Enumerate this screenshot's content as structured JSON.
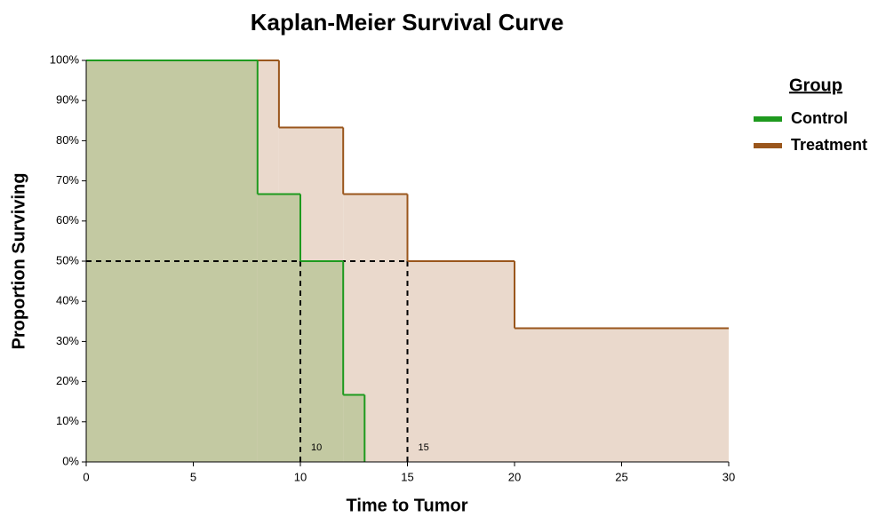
{
  "chart_data": {
    "type": "step",
    "title": "Kaplan-Meier Survival Curve",
    "x_label": "Time to Tumor",
    "y_label": "Proportion Surviving",
    "legend_title": "Group",
    "legend": "right",
    "series": [
      {
        "name": "Control",
        "color": "#1e9a1e",
        "fill": "#c3c9a2",
        "x": [
          0,
          8,
          10,
          12,
          13
        ],
        "values": [
          100,
          66.7,
          50,
          16.7,
          0
        ]
      },
      {
        "name": "Treatment",
        "color": "#9a561c",
        "fill": "#ead9cc",
        "x": [
          0,
          9,
          12,
          15,
          20,
          30
        ],
        "values": [
          100,
          83.3,
          66.7,
          50,
          33.3,
          33.3
        ]
      }
    ],
    "median_level": 50,
    "medians": [
      10,
      15
    ],
    "xlim": [
      0,
      30
    ],
    "xticks": [
      0,
      5,
      10,
      15,
      20,
      25,
      30
    ],
    "ylim": [
      0,
      100
    ],
    "yticks": [
      {
        "value": 0,
        "label": "0%"
      },
      {
        "value": 10,
        "label": "10%"
      },
      {
        "value": 20,
        "label": "20%"
      },
      {
        "value": 30,
        "label": "30%"
      },
      {
        "value": 40,
        "label": "40%"
      },
      {
        "value": 50,
        "label": "50%"
      },
      {
        "value": 60,
        "label": "60%"
      },
      {
        "value": 70,
        "label": "70%"
      },
      {
        "value": 80,
        "label": "80%"
      },
      {
        "value": 90,
        "label": "90%"
      },
      {
        "value": 100,
        "label": "100%"
      }
    ]
  }
}
